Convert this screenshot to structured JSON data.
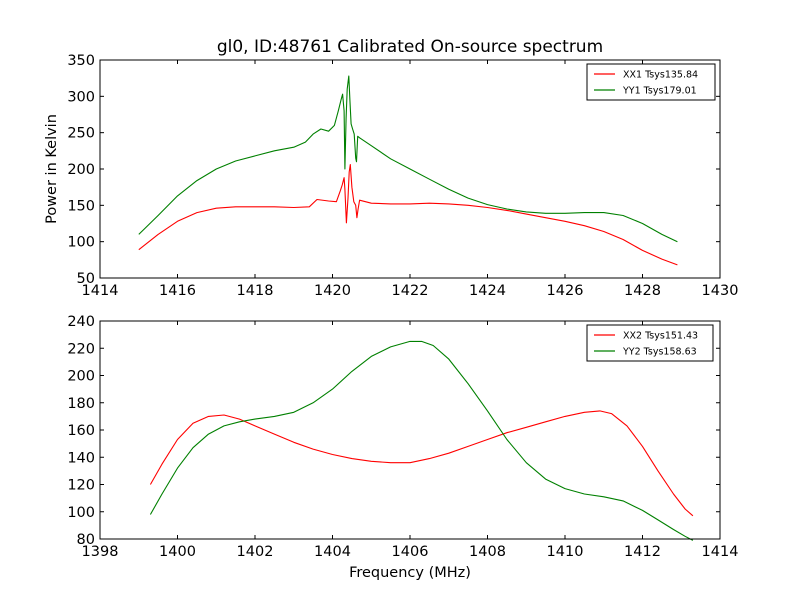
{
  "chart_data": [
    {
      "type": "line",
      "title": "gl0, ID:48761 Calibrated On-source spectrum",
      "xlabel": "",
      "ylabel": "Power in Kelvin",
      "xlim": [
        1414,
        1430
      ],
      "ylim": [
        50,
        350
      ],
      "xticks": [
        1414,
        1416,
        1418,
        1420,
        1422,
        1424,
        1426,
        1428,
        1430
      ],
      "yticks": [
        50,
        100,
        150,
        200,
        250,
        300,
        350
      ],
      "grid": false,
      "legend_position": "top-right",
      "series": [
        {
          "name": "XX1 Tsys135.84",
          "color": "#ff0000",
          "x": [
            1415.0,
            1415.5,
            1416.0,
            1416.5,
            1417.0,
            1417.5,
            1418.0,
            1418.5,
            1419.0,
            1419.4,
            1419.6,
            1419.9,
            1420.1,
            1420.2,
            1420.25,
            1420.3,
            1420.32,
            1420.36,
            1420.4,
            1420.43,
            1420.46,
            1420.5,
            1420.55,
            1420.6,
            1420.63,
            1420.66,
            1420.7,
            1421.0,
            1421.5,
            1422.0,
            1422.5,
            1423.0,
            1423.5,
            1424.0,
            1424.5,
            1425.0,
            1425.5,
            1426.0,
            1426.5,
            1427.0,
            1427.5,
            1428.0,
            1428.5,
            1428.9
          ],
          "y": [
            89,
            110,
            128,
            140,
            146,
            148,
            148,
            148,
            147,
            148,
            158,
            156,
            155,
            170,
            178,
            188,
            172,
            126,
            160,
            196,
            206,
            175,
            155,
            150,
            133,
            145,
            157,
            153,
            152,
            152,
            153,
            152,
            150,
            147,
            143,
            138,
            133,
            128,
            122,
            114,
            103,
            88,
            76,
            68
          ]
        },
        {
          "name": "YY1 Tsys179.01",
          "color": "#008000",
          "x": [
            1415.0,
            1415.5,
            1416.0,
            1416.5,
            1417.0,
            1417.5,
            1418.0,
            1418.5,
            1419.0,
            1419.3,
            1419.5,
            1419.7,
            1419.9,
            1420.05,
            1420.15,
            1420.22,
            1420.26,
            1420.3,
            1420.32,
            1420.35,
            1420.38,
            1420.42,
            1420.45,
            1420.48,
            1420.52,
            1420.56,
            1420.6,
            1420.62,
            1420.65,
            1420.7,
            1421.0,
            1421.5,
            1422.0,
            1422.5,
            1423.0,
            1423.5,
            1424.0,
            1424.5,
            1425.0,
            1425.5,
            1426.0,
            1426.5,
            1427.0,
            1427.5,
            1428.0,
            1428.5,
            1428.9
          ],
          "y": [
            110,
            136,
            163,
            184,
            200,
            211,
            218,
            225,
            230,
            237,
            248,
            255,
            252,
            260,
            280,
            295,
            303,
            280,
            200,
            270,
            310,
            328,
            295,
            262,
            255,
            248,
            215,
            210,
            245,
            243,
            232,
            214,
            200,
            186,
            172,
            160,
            151,
            145,
            141,
            139,
            139,
            140,
            140,
            136,
            125,
            110,
            100
          ]
        }
      ]
    },
    {
      "type": "line",
      "title": "",
      "xlabel": "Frequency (MHz)",
      "ylabel": "",
      "xlim": [
        1398,
        1414
      ],
      "ylim": [
        80,
        240
      ],
      "xticks": [
        1398,
        1400,
        1402,
        1404,
        1406,
        1408,
        1410,
        1412,
        1414
      ],
      "yticks": [
        80,
        100,
        120,
        140,
        160,
        180,
        200,
        220,
        240
      ],
      "grid": false,
      "legend_position": "top-right",
      "series": [
        {
          "name": "XX2 Tsys151.43",
          "color": "#ff0000",
          "x": [
            1399.3,
            1399.6,
            1400.0,
            1400.4,
            1400.8,
            1401.2,
            1401.6,
            1402.0,
            1402.5,
            1403.0,
            1403.5,
            1404.0,
            1404.5,
            1405.0,
            1405.5,
            1406.0,
            1406.5,
            1407.0,
            1407.5,
            1408.0,
            1408.5,
            1409.0,
            1409.5,
            1410.0,
            1410.5,
            1410.9,
            1411.2,
            1411.6,
            1412.0,
            1412.4,
            1412.8,
            1413.1,
            1413.3
          ],
          "y": [
            120,
            135,
            153,
            165,
            170,
            171,
            168,
            163,
            157,
            151,
            146,
            142,
            139,
            137,
            136,
            136,
            139,
            143,
            148,
            153,
            158,
            162,
            166,
            170,
            173,
            174,
            172,
            163,
            148,
            130,
            113,
            102,
            97
          ]
        },
        {
          "name": "YY2 Tsys158.63",
          "color": "#008000",
          "x": [
            1399.3,
            1399.6,
            1400.0,
            1400.4,
            1400.8,
            1401.2,
            1401.6,
            1402.0,
            1402.5,
            1403.0,
            1403.5,
            1404.0,
            1404.5,
            1405.0,
            1405.5,
            1406.0,
            1406.3,
            1406.6,
            1407.0,
            1407.5,
            1408.0,
            1408.5,
            1409.0,
            1409.5,
            1410.0,
            1410.5,
            1411.0,
            1411.5,
            1412.0,
            1412.4,
            1412.8,
            1413.1,
            1413.3
          ],
          "y": [
            98,
            113,
            132,
            147,
            157,
            163,
            166,
            168,
            170,
            173,
            180,
            190,
            203,
            214,
            221,
            225,
            225,
            222,
            212,
            194,
            174,
            153,
            136,
            124,
            117,
            113,
            111,
            108,
            101,
            94,
            87,
            82,
            79
          ]
        }
      ]
    }
  ]
}
